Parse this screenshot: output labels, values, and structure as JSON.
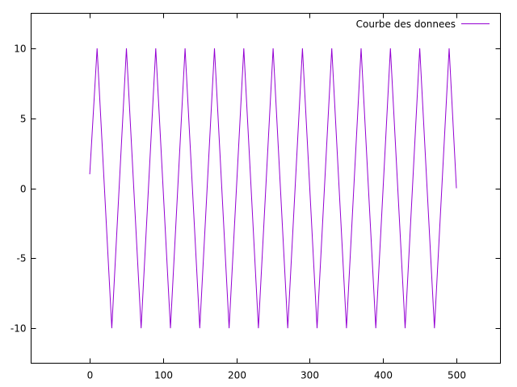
{
  "chart_data": {
    "type": "line",
    "title": "",
    "xlabel": "",
    "ylabel": "",
    "xlim": [
      -80,
      560
    ],
    "ylim": [
      -12.5,
      12.5
    ],
    "grid": false,
    "legend": {
      "placement": "top-right"
    },
    "x_ticks": [
      0,
      100,
      200,
      300,
      400,
      500
    ],
    "x_tick_labels": [
      "0",
      "100",
      "200",
      "300",
      "400",
      "500"
    ],
    "y_ticks": [
      -10,
      -5,
      0,
      5,
      10
    ],
    "y_tick_labels": [
      "-10",
      "-5",
      "0",
      "5",
      "10"
    ],
    "series": [
      {
        "name": "Courbe des donnees",
        "color": "#9400d3",
        "x": [
          0,
          10,
          30,
          50,
          70,
          90,
          110,
          130,
          150,
          170,
          190,
          210,
          230,
          250,
          270,
          290,
          310,
          330,
          350,
          370,
          390,
          410,
          430,
          450,
          470,
          490,
          500
        ],
        "y": [
          1,
          10,
          -10,
          10,
          -10,
          10,
          -10,
          10,
          -10,
          10,
          -10,
          10,
          -10,
          10,
          -10,
          10,
          -10,
          10,
          -10,
          10,
          -10,
          10,
          -10,
          10,
          -10,
          10,
          0
        ]
      }
    ]
  }
}
